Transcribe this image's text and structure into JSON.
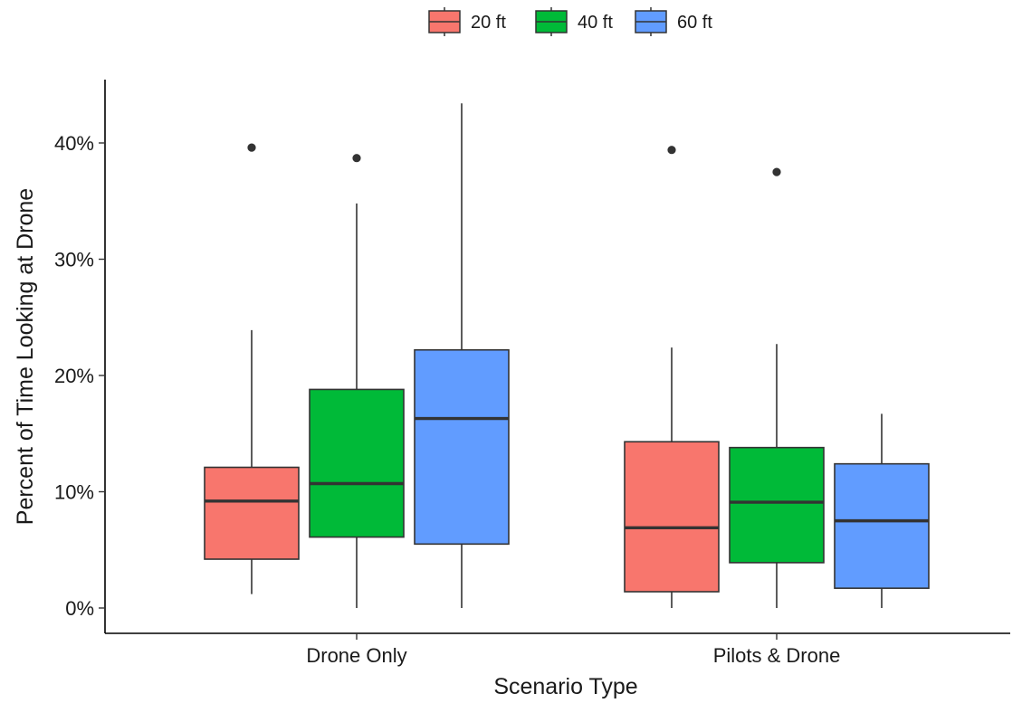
{
  "chart_data": {
    "type": "boxplot",
    "xlabel": "Scenario Type",
    "ylabel": "Percent of Time Looking at Drone",
    "ylim": [
      0,
      44
    ],
    "y_ticks": [
      0,
      10,
      20,
      30,
      40
    ],
    "y_tick_labels": [
      "0%",
      "10%",
      "20%",
      "30%",
      "40%"
    ],
    "grid": false,
    "legend_position": "top",
    "categories": [
      "Drone Only",
      "Pilots & Drone"
    ],
    "series": [
      {
        "name": "20 ft",
        "color": "#F8766D",
        "boxes": [
          {
            "whisker_low": 1.2,
            "q1": 4.2,
            "median": 9.2,
            "q3": 12.1,
            "whisker_high": 23.9,
            "outliers": [
              39.6
            ]
          },
          {
            "whisker_low": 0.0,
            "q1": 1.4,
            "median": 6.9,
            "q3": 14.3,
            "whisker_high": 22.4,
            "outliers": [
              39.4
            ]
          }
        ]
      },
      {
        "name": "40 ft",
        "color": "#00BA38",
        "boxes": [
          {
            "whisker_low": 0.0,
            "q1": 6.1,
            "median": 10.7,
            "q3": 18.8,
            "whisker_high": 34.8,
            "outliers": [
              38.7
            ]
          },
          {
            "whisker_low": 0.0,
            "q1": 3.9,
            "median": 9.1,
            "q3": 13.8,
            "whisker_high": 22.7,
            "outliers": [
              37.5
            ]
          }
        ]
      },
      {
        "name": "60 ft",
        "color": "#619CFF",
        "boxes": [
          {
            "whisker_low": 0.0,
            "q1": 5.5,
            "median": 16.3,
            "q3": 22.2,
            "whisker_high": 43.4,
            "outliers": []
          },
          {
            "whisker_low": 0.0,
            "q1": 1.7,
            "median": 7.5,
            "q3": 12.4,
            "whisker_high": 16.7,
            "outliers": []
          }
        ]
      }
    ]
  }
}
